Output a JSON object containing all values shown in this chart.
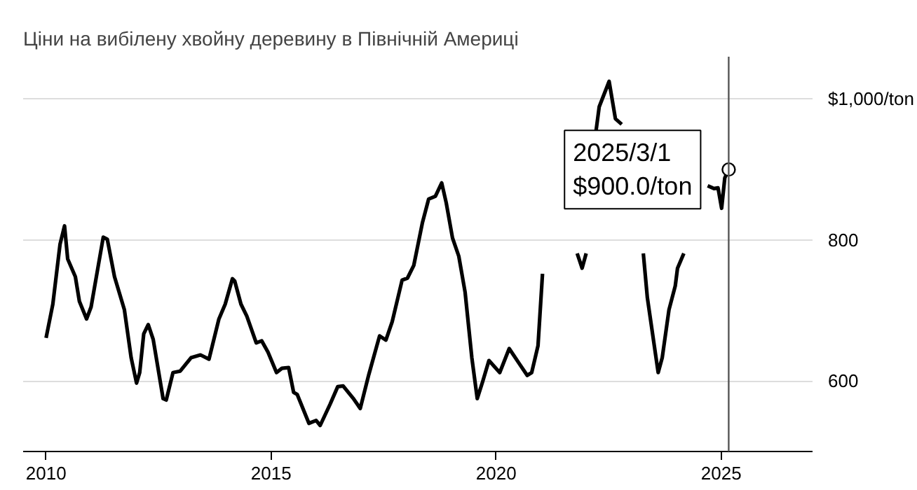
{
  "chart_data": {
    "type": "line",
    "title": "Ціни на вибілену хвойну деревину в Північній Америці",
    "x": [
      2010.0,
      2010.15,
      2010.31,
      2010.41,
      2010.48,
      2010.65,
      2010.74,
      2010.9,
      2011.0,
      2011.27,
      2011.36,
      2011.52,
      2011.74,
      2011.89,
      2012.01,
      2012.08,
      2012.17,
      2012.27,
      2012.38,
      2012.6,
      2012.67,
      2012.82,
      2012.98,
      2013.22,
      2013.43,
      2013.62,
      2013.84,
      2013.98,
      2014.14,
      2014.19,
      2014.33,
      2014.46,
      2014.67,
      2014.79,
      2014.93,
      2015.12,
      2015.24,
      2015.39,
      2015.5,
      2015.58,
      2015.84,
      2016.0,
      2016.09,
      2016.31,
      2016.48,
      2016.6,
      2016.84,
      2016.98,
      2017.17,
      2017.41,
      2017.55,
      2017.69,
      2017.91,
      2018.03,
      2018.17,
      2018.36,
      2018.5,
      2018.65,
      2018.79,
      2018.89,
      2019.03,
      2019.17,
      2019.31,
      2019.46,
      2019.58,
      2019.7,
      2019.84,
      2020.08,
      2020.29,
      2020.51,
      2020.69,
      2020.79,
      2020.93,
      2021.03,
      2021.05,
      2021.78,
      2021.8,
      2021.91,
      2022.0,
      2022.05,
      2022.2,
      2022.22,
      2022.29,
      2022.51,
      2022.65,
      2022.79,
      2022.89,
      2022.92,
      2023.25,
      2023.27,
      2023.36,
      2023.6,
      2023.69,
      2023.84,
      2023.98,
      2024.03,
      2024.17,
      2024.2,
      2024.68,
      2024.7,
      2024.84,
      2024.93,
      2025.01,
      2025.08,
      2025.167
    ],
    "series": [
      {
        "color": "#000000",
        "values": [
          661,
          709,
          794,
          820,
          773,
          748,
          713,
          688,
          705,
          804,
          801,
          748,
          701,
          633,
          597,
          612,
          667,
          680,
          659,
          575,
          573,
          612,
          614,
          633,
          637,
          631,
          688,
          709,
          745,
          742,
          709,
          692,
          654,
          657,
          641,
          612,
          618,
          619,
          584,
          581,
          540,
          544,
          537,
          567,
          592,
          593,
          574,
          561,
          609,
          664,
          658,
          684,
          743,
          746,
          764,
          824,
          858,
          862,
          881,
          853,
          803,
          777,
          726,
          633,
          575,
          599,
          629,
          612,
          646,
          625,
          608,
          612,
          650,
          752,
          null,
          null,
          781,
          760,
          781,
          null,
          null,
          955,
          989,
          1025,
          972,
          964,
          null,
          null,
          null,
          781,
          718,
          612,
          633,
          701,
          735,
          760,
          781,
          null,
          null,
          877,
          873,
          874,
          845,
          888,
          900
        ]
      }
    ],
    "xlim": [
      2009.49,
      2027.03
    ],
    "ylim": [
      500,
      1060
    ],
    "xticks": [
      2010,
      2015,
      2020,
      2025
    ],
    "yticks": [
      600,
      800,
      {
        "value": 1000,
        "label": "$1,000/ton"
      }
    ],
    "grid": "y",
    "line_style": "solid",
    "marker": "none",
    "ref_lines": [
      {
        "axis": "x",
        "value": 2025.167,
        "color": "#555555"
      }
    ],
    "annotations": [
      {
        "text": "2025/3/1\n$900.0/ton",
        "x": 2025.167,
        "y": 900
      }
    ]
  }
}
